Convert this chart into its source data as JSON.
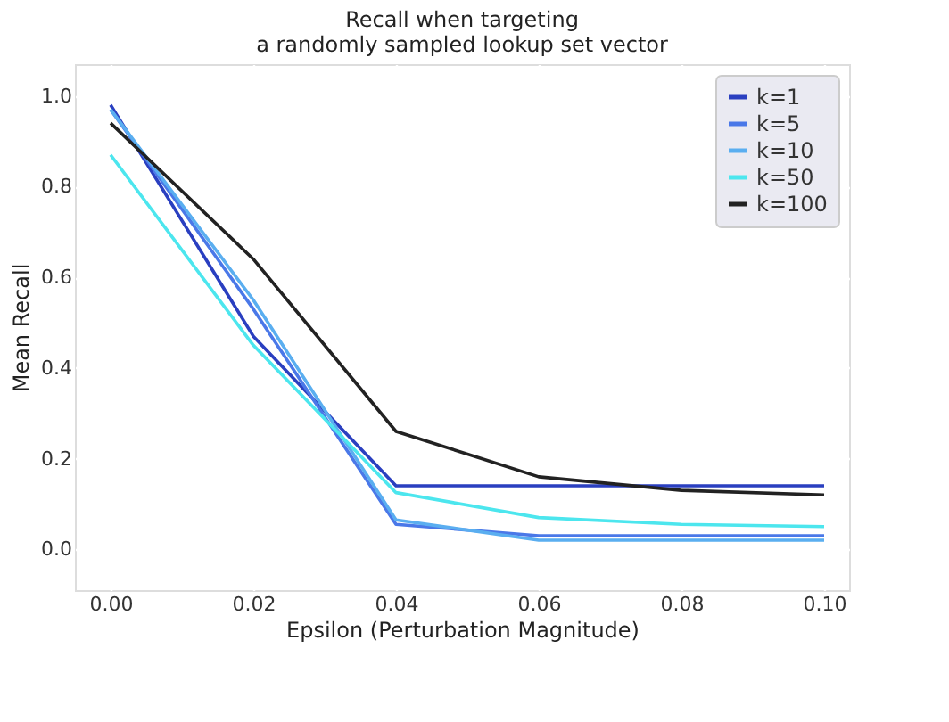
{
  "chart_data": {
    "type": "line",
    "title": "Recall when targeting\na randomly sampled lookup set vector",
    "xlabel": "Epsilon (Perturbation Magnitude)",
    "ylabel": "Mean Recall",
    "x": [
      0.0,
      0.02,
      0.04,
      0.06,
      0.08,
      0.1
    ],
    "series": [
      {
        "name": "k=1",
        "color": "#2a3fc0",
        "values": [
          0.98,
          0.47,
          0.14,
          0.14,
          0.14,
          0.14
        ]
      },
      {
        "name": "k=5",
        "color": "#4a78e8",
        "values": [
          0.97,
          0.53,
          0.055,
          0.03,
          0.03,
          0.03
        ]
      },
      {
        "name": "k=10",
        "color": "#5aaef0",
        "values": [
          0.97,
          0.55,
          0.065,
          0.02,
          0.02,
          0.02
        ]
      },
      {
        "name": "k=50",
        "color": "#4ce6ee",
        "values": [
          0.87,
          0.45,
          0.125,
          0.07,
          0.055,
          0.05
        ]
      },
      {
        "name": "k=100",
        "color": "#222222",
        "values": [
          0.94,
          0.64,
          0.26,
          0.16,
          0.13,
          0.12
        ]
      }
    ],
    "xlim": [
      -0.005,
      0.1035
    ],
    "ylim": [
      -0.09,
      1.07
    ],
    "xticks": [
      {
        "value": 0.0,
        "label": "0.00"
      },
      0.02,
      0.04,
      0.06,
      0.08,
      {
        "value": 0.1,
        "label": "0.10"
      }
    ],
    "yticks": [
      {
        "value": 0.0,
        "label": "0.0"
      },
      0.2,
      0.4,
      0.6,
      0.8,
      {
        "value": 1.0,
        "label": "1.0"
      }
    ],
    "grid": true,
    "legend": "top right",
    "marker": "none",
    "line_style": "solid"
  }
}
